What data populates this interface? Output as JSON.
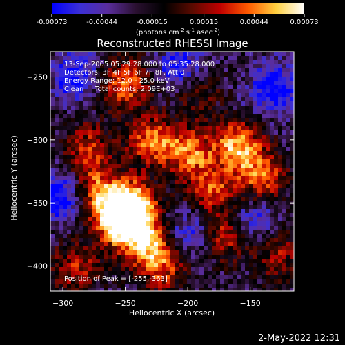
{
  "colors": {
    "background": "#000000",
    "foreground": "#ffffff",
    "scale_stops": [
      "#0000ff",
      "#3b2fd6",
      "#5a2d9c",
      "#2a1030",
      "#000000",
      "#5a0a00",
      "#c00000",
      "#ff5a00",
      "#ffd040",
      "#ffffff"
    ]
  },
  "colorbar": {
    "tick_labels": [
      "-0.00073",
      "-0.00044",
      "-0.00015",
      "0.00015",
      "0.00044",
      "0.00073"
    ],
    "unit_prefix": "(photons cm",
    "unit_exp1": "-2",
    "unit_mid": " s",
    "unit_exp2": "-1",
    "unit_mid2": " asec",
    "unit_exp3": "-2",
    "unit_suffix": ")"
  },
  "chart_data": {
    "type": "heatmap",
    "title": "Reconstructed RHESSI Image",
    "xlabel": "Heliocentric X (arcsec)",
    "ylabel": "Heliocentric Y (arcsec)",
    "xlim": [
      -310,
      -115
    ],
    "ylim": [
      -420,
      -230
    ],
    "xticks": [
      -300,
      -250,
      -200,
      -150
    ],
    "yticks": [
      -250,
      -300,
      -350,
      -400
    ],
    "value_range": [
      -0.00073,
      0.00073
    ],
    "peak_position": [
      -255,
      -363
    ],
    "bright_sources": [
      {
        "x": -255,
        "y": -363,
        "level": 1.0
      },
      {
        "x": -245,
        "y": -350,
        "level": 0.85
      },
      {
        "x": -235,
        "y": -378,
        "level": 0.8
      },
      {
        "x": -275,
        "y": -340,
        "level": 0.7
      },
      {
        "x": -160,
        "y": -305,
        "level": 0.85
      },
      {
        "x": -200,
        "y": -310,
        "level": 0.7
      },
      {
        "x": -230,
        "y": -300,
        "level": 0.65
      },
      {
        "x": -140,
        "y": -330,
        "level": 0.6
      },
      {
        "x": -180,
        "y": -340,
        "level": 0.55
      },
      {
        "x": -250,
        "y": -255,
        "level": 0.7
      },
      {
        "x": -220,
        "y": -400,
        "level": 0.6
      },
      {
        "x": -170,
        "y": -375,
        "level": 0.6
      },
      {
        "x": -290,
        "y": -400,
        "level": 0.5
      },
      {
        "x": -280,
        "y": -305,
        "level": 0.5
      },
      {
        "x": -130,
        "y": -390,
        "level": 0.45
      },
      {
        "x": -195,
        "y": -260,
        "level": 0.45
      }
    ],
    "dim_regions": [
      {
        "x": -300,
        "y": -345,
        "level": -0.7
      },
      {
        "x": -130,
        "y": -260,
        "level": -0.6
      },
      {
        "x": -205,
        "y": -245,
        "level": -0.6
      },
      {
        "x": -290,
        "y": -250,
        "level": -0.5
      },
      {
        "x": -150,
        "y": -365,
        "level": -0.5
      },
      {
        "x": -200,
        "y": -375,
        "level": -0.45
      }
    ],
    "annotations": {
      "time": "13-Sep-2005 05:29:28.000 to 05:35:28.000",
      "detectors": "Detectors: 3F 4F 5F 6F 7F 8F, Att 0",
      "energy": "Energy Range: 12.0 - 25.0 keV",
      "clean": "Clean     Total counts: 2.09E+03",
      "peak": "Position of Peak = [-255,-363]"
    }
  },
  "footer": {
    "timestamp": "2-May-2022 12:31"
  }
}
